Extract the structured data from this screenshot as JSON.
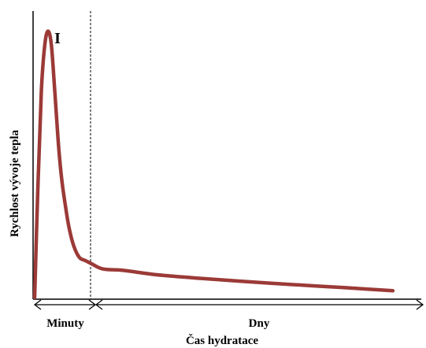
{
  "chart_data": {
    "type": "line",
    "title": "",
    "xlabel": "Čas hydratace",
    "ylabel": "Rychlost vývoje tepla",
    "phase_marker": "I",
    "x_scale": "schematic two-segment time axis (minutes, then days)",
    "x_segments": [
      {
        "label": "Minuty",
        "range": [
          0,
          1
        ]
      },
      {
        "label": "Dny",
        "range": [
          1,
          5
        ]
      }
    ],
    "divider_x": 1,
    "xlim": [
      0,
      5
    ],
    "ylim": [
      0,
      1
    ],
    "grid": false,
    "legend": "none",
    "series": [
      {
        "color": "#9b3a37",
        "x": [
          0,
          0.06,
          0.12,
          0.18,
          0.24,
          0.3,
          0.36,
          0.42,
          0.48,
          0.55,
          0.62,
          0.7,
          0.8,
          0.9,
          1.0,
          1.15,
          1.4,
          1.8,
          2.3,
          2.9,
          3.5,
          4.1,
          4.7
        ],
        "y": [
          0.0,
          0.4,
          0.72,
          0.88,
          0.93,
          0.88,
          0.72,
          0.55,
          0.42,
          0.32,
          0.24,
          0.18,
          0.14,
          0.13,
          0.12,
          0.1,
          0.095,
          0.08,
          0.068,
          0.056,
          0.045,
          0.035,
          0.024
        ]
      }
    ]
  }
}
